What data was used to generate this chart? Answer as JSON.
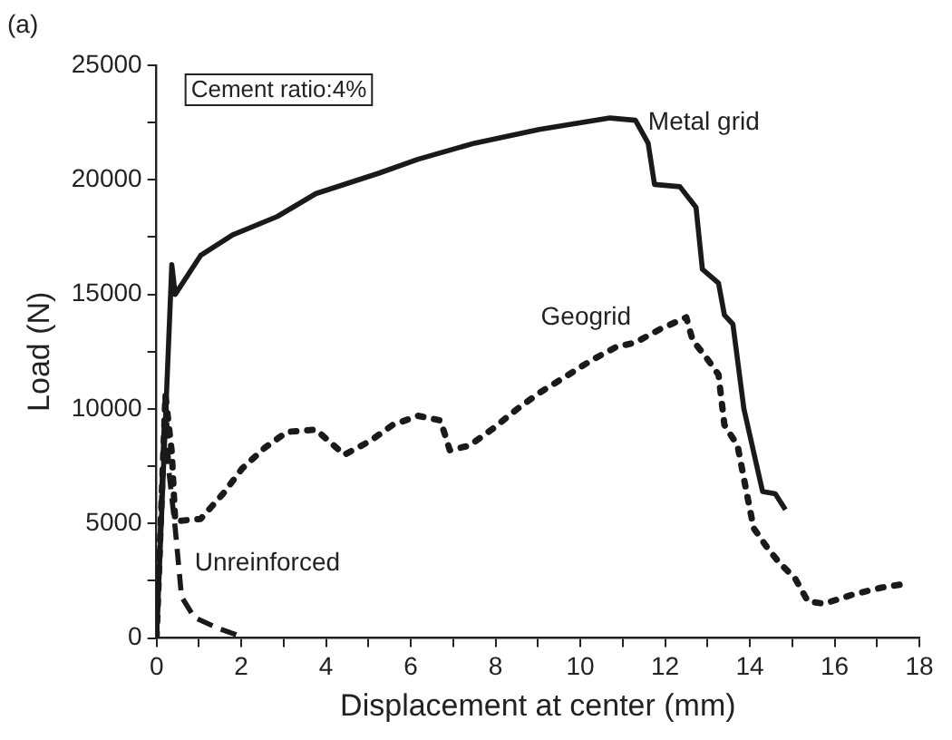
{
  "chart_data": {
    "type": "line",
    "xlabel": "Displacement at center (mm)",
    "ylabel": "Load (N)",
    "annotations": [
      "(a)",
      "Cement ratio:4%"
    ],
    "xlim": [
      0,
      18
    ],
    "xticks": [
      0,
      {
        "value": 1,
        "label": null
      },
      2,
      {
        "value": 3,
        "label": null
      },
      4,
      {
        "value": 5,
        "label": null
      },
      6,
      {
        "value": 7,
        "label": null
      },
      8,
      {
        "value": 9,
        "label": null
      },
      10,
      {
        "value": 11,
        "label": null
      },
      12,
      {
        "value": 13,
        "label": null
      },
      14,
      {
        "value": 15,
        "label": null
      },
      16,
      {
        "value": 17,
        "label": null
      },
      18
    ],
    "ylim": [
      0,
      25000
    ],
    "yticks": [
      0,
      {
        "value": 2500,
        "label": null
      },
      5000,
      {
        "value": 7500,
        "label": null
      },
      10000,
      {
        "value": 12500,
        "label": null
      },
      15000,
      {
        "value": 17500,
        "label": null
      },
      20000,
      {
        "value": 22500,
        "label": null
      },
      25000
    ],
    "grid": false,
    "legend": false,
    "marker": "none",
    "series": [
      {
        "name": "Metal grid",
        "color": "#1a1a1a",
        "line_style": "solid",
        "x": [
          0,
          0.36,
          0.44,
          1.04,
          1.8,
          2.85,
          3.76,
          5.26,
          6.17,
          7.5,
          9.03,
          10.7,
          11.3,
          11.6,
          11.75,
          12.35,
          12.73,
          12.88,
          13.26,
          13.4,
          13.6,
          13.86,
          14.3,
          14.6,
          14.84
        ],
        "values": [
          0,
          16300,
          15000,
          16700,
          17600,
          18400,
          19400,
          20300,
          20900,
          21600,
          22200,
          22700,
          22600,
          21600,
          19800,
          19700,
          18800,
          16100,
          15500,
          14100,
          13700,
          10000,
          6400,
          6300,
          5600
        ]
      },
      {
        "name": "Geogrid",
        "color": "#1a1a1a",
        "line_style": "dotted",
        "x": [
          0,
          0.21,
          0.36,
          0.44,
          1.04,
          1.57,
          2.02,
          2.55,
          3.08,
          3.76,
          4.43,
          5.04,
          5.57,
          6.17,
          6.7,
          6.92,
          7.38,
          7.98,
          8.51,
          9.03,
          9.64,
          10.24,
          10.84,
          11.3,
          11.9,
          12.5,
          12.65,
          12.95,
          13.26,
          13.4,
          13.71,
          13.94,
          14.09,
          14.39,
          14.69,
          15.07,
          15.37,
          15.75,
          16.43,
          17.1,
          17.78
        ],
        "values": [
          0,
          10600,
          8100,
          5100,
          5200,
          6300,
          7400,
          8300,
          9000,
          9100,
          8000,
          8600,
          9300,
          9700,
          9500,
          8200,
          8400,
          9200,
          10000,
          10700,
          11400,
          12100,
          12700,
          12900,
          13500,
          14000,
          13000,
          12300,
          11500,
          9300,
          8400,
          6200,
          4800,
          4000,
          3300,
          2600,
          1600,
          1500,
          1900,
          2200,
          2400
        ]
      },
      {
        "name": "Unreinforced",
        "color": "#1a1a1a",
        "line_style": "dashed",
        "x": [
          0,
          0.21,
          0.29,
          0.44,
          0.59,
          0.89,
          1.49,
          1.95
        ],
        "values": [
          0,
          10800,
          7300,
          4800,
          1800,
          900,
          400,
          100
        ]
      }
    ]
  }
}
